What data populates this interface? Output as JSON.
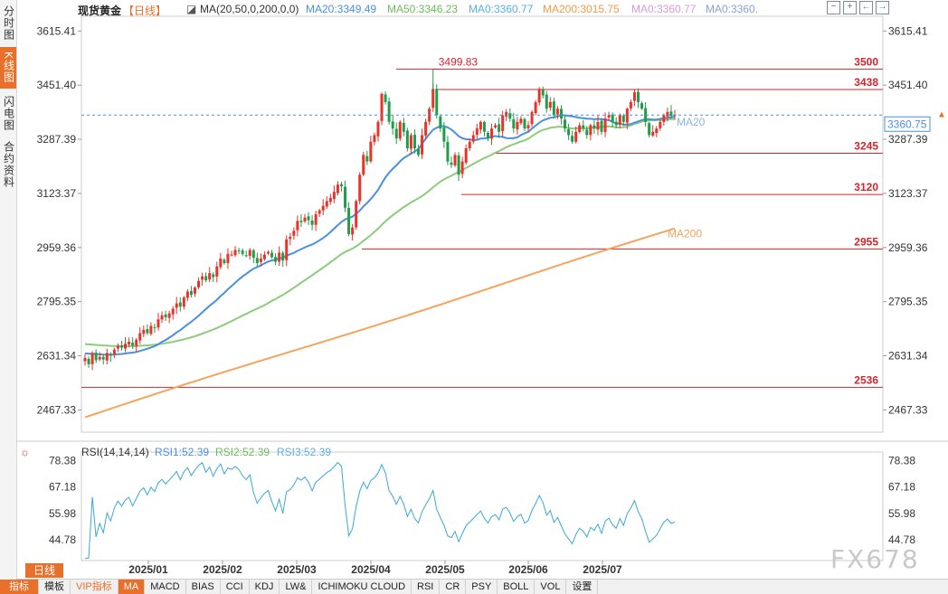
{
  "rail": {
    "tabs": [
      {
        "label": "分时图",
        "active": false
      },
      {
        "label": "K线图",
        "active": true
      },
      {
        "label": "闪电图",
        "active": false
      },
      {
        "label": "合约资料",
        "active": false
      }
    ]
  },
  "header": {
    "instrument": "现货黄金",
    "period": "【日线】",
    "ma_label": "MA(20,50,0,200,0,0)",
    "ma20": "MA20:3349.49",
    "ma50": "MA50:3346.23",
    "ma0a": "MA0:3360.77",
    "ma200": "MA200:3015.75",
    "ma0b": "MA0:3360.77",
    "ma0c": "MA0:3360.",
    "controls": [
      "−",
      "+",
      "←",
      "→"
    ]
  },
  "rsi_header": {
    "label": "RSI(14,14,14)",
    "rsi1": "RSI1:52.39",
    "rsi2": "RSI2:52.39",
    "rsi3": "RSI3:52.39"
  },
  "colors": {
    "up": "#e8332a",
    "down": "#1f9e4a",
    "ma20": "#4a8fe0",
    "ma50": "#8ccc7a",
    "ma200": "#f5a45d",
    "rsi": "#3aa8d8",
    "level": "#d6242a",
    "current": "#4a8fe0",
    "accent": "#e8702a"
  },
  "chart_data": {
    "type": "candlestick",
    "ylim": [
      2400,
      3660
    ],
    "price_ticks": [
      3615.41,
      3451.4,
      3287.39,
      3123.37,
      2959.36,
      2795.35,
      2631.34,
      2467.33
    ],
    "x_months": [
      "2025/01",
      "2025/02",
      "2025/03",
      "2025/04",
      "2025/05",
      "2025/06",
      "2025/07"
    ],
    "current_price": 3360.75,
    "high_label": "3499.83",
    "levels": [
      {
        "value": 3500,
        "label": "3500"
      },
      {
        "value": 3438,
        "label": "3438"
      },
      {
        "value": 3245,
        "label": "3245"
      },
      {
        "value": 3120,
        "label": "3120"
      },
      {
        "value": 2955,
        "label": "2955"
      },
      {
        "value": 2536,
        "label": "2536"
      }
    ],
    "ma_tags": [
      "MA20",
      "MA200"
    ],
    "rsi_ticks": [
      78.38,
      67.18,
      55.98,
      44.78
    ],
    "rsi_ylim": [
      36,
      82
    ],
    "closes": [
      2625,
      2606,
      2640,
      2618,
      2628,
      2620,
      2640,
      2632,
      2650,
      2662,
      2656,
      2668,
      2674,
      2662,
      2680,
      2700,
      2710,
      2700,
      2722,
      2716,
      2742,
      2754,
      2748,
      2760,
      2774,
      2790,
      2780,
      2808,
      2826,
      2816,
      2838,
      2858,
      2872,
      2860,
      2882,
      2870,
      2902,
      2926,
      2912,
      2940,
      2938,
      2952,
      2948,
      2940,
      2935,
      2952,
      2928,
      2912,
      2926,
      2938,
      2946,
      2930,
      2916,
      2944,
      2920,
      2984,
      2992,
      3010,
      3040,
      3036,
      3050,
      3042,
      3028,
      3060,
      3072,
      3086,
      3100,
      3110,
      3128,
      3150,
      3145,
      3080,
      3000,
      3020,
      3100,
      3180,
      3240,
      3220,
      3280,
      3300,
      3340,
      3425,
      3400,
      3340,
      3320,
      3290,
      3340,
      3310,
      3260,
      3300,
      3260,
      3240,
      3300,
      3340,
      3380,
      3440,
      3360,
      3320,
      3280,
      3220,
      3210,
      3240,
      3180,
      3220,
      3260,
      3280,
      3300,
      3320,
      3340,
      3310,
      3290,
      3320,
      3330,
      3310,
      3360,
      3370,
      3350,
      3320,
      3340,
      3350,
      3320,
      3330,
      3370,
      3400,
      3440,
      3420,
      3380,
      3400,
      3360,
      3380,
      3350,
      3320,
      3300,
      3280,
      3310,
      3330,
      3320,
      3300,
      3330,
      3320,
      3340,
      3310,
      3350,
      3360,
      3340,
      3330,
      3360,
      3340,
      3380,
      3400,
      3430,
      3400,
      3380,
      3340,
      3300,
      3310,
      3320,
      3340,
      3360,
      3370,
      3358,
      3362
    ]
  },
  "period_tab": "日线",
  "bottom_tabs": [
    {
      "label": "指标",
      "style": "first"
    },
    {
      "label": "模板",
      "style": ""
    },
    {
      "label": "VIP指标",
      "style": "vip"
    },
    {
      "label": "MA",
      "style": "active"
    },
    {
      "label": "MACD",
      "style": ""
    },
    {
      "label": "BIAS",
      "style": ""
    },
    {
      "label": "CCI",
      "style": ""
    },
    {
      "label": "KDJ",
      "style": ""
    },
    {
      "label": "LW&",
      "style": ""
    },
    {
      "label": "ICHIMOKU CLOUD",
      "style": ""
    },
    {
      "label": "RSI",
      "style": ""
    },
    {
      "label": "CR",
      "style": ""
    },
    {
      "label": "PSY",
      "style": ""
    },
    {
      "label": "BOLL",
      "style": ""
    },
    {
      "label": "VOL",
      "style": ""
    },
    {
      "label": "设置",
      "style": ""
    }
  ],
  "watermark": "FX678"
}
